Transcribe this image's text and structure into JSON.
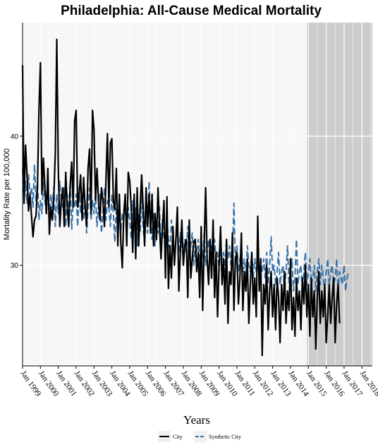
{
  "chart_data": {
    "type": "line",
    "title": "Philadelphia: All-Cause Medical Mortality",
    "xlabel": "Years",
    "ylabel": "Mortality Rate per 100,000",
    "x_range": [
      "1999-01",
      "2018-08"
    ],
    "ylim": [
      22.2,
      48.8
    ],
    "yticks": [
      30,
      40
    ],
    "x_tick_labels": [
      "Jan 1999",
      "Jan 2000",
      "Jan 2001",
      "Jan 2002",
      "Jan 2003",
      "Jan 2004",
      "Jan 2005",
      "Jan 2006",
      "Jan 2007",
      "Jan 2008",
      "Jan 2009",
      "Jan 2010",
      "Jan 2011",
      "Jan 2012",
      "Jan 2013",
      "Jan 2014",
      "Jan 2015",
      "Jan 2016",
      "Jan 2017",
      "Jan 2018"
    ],
    "shaded_period": {
      "start": "2014-12",
      "end": "2018-08",
      "color": "#cccccc"
    },
    "grid": true,
    "legend_position": "bottom",
    "series": [
      {
        "name": "City",
        "color": "#000000",
        "style": "solid",
        "x_start": "1999-01",
        "values": [
          45.5,
          34.8,
          39.3,
          37.0,
          34.2,
          35.5,
          33.8,
          32.2,
          33.5,
          33.8,
          36.0,
          42.0,
          45.7,
          35.5,
          38.3,
          36.0,
          34.0,
          37.5,
          32.4,
          34.5,
          33.5,
          35.3,
          38.7,
          47.5,
          37.5,
          33.0,
          35.0,
          36.0,
          33.0,
          37.2,
          34.5,
          33.0,
          36.2,
          38.0,
          34.5,
          41.2,
          42.0,
          34.5,
          35.5,
          37.0,
          33.5,
          36.8,
          34.5,
          33.0,
          37.5,
          39.0,
          34.0,
          42.0,
          40.5,
          35.0,
          37.5,
          35.0,
          33.5,
          36.0,
          35.0,
          33.0,
          36.5,
          40.2,
          34.5,
          39.5,
          39.8,
          35.0,
          34.3,
          37.5,
          31.5,
          35.5,
          31.8,
          29.8,
          34.0,
          35.5,
          31.5,
          37.2,
          36.5,
          34.5,
          31.0,
          35.5,
          30.5,
          36.0,
          31.5,
          34.5,
          37.0,
          34.5,
          31.5,
          36.0,
          33.0,
          35.5,
          32.5,
          35.5,
          31.5,
          34.0,
          32.0,
          36.0,
          33.0,
          30.5,
          33.0,
          35.0,
          29.0,
          35.3,
          28.2,
          31.5,
          29.0,
          33.0,
          30.0,
          32.0,
          34.5,
          28.0,
          31.0,
          33.5,
          30.0,
          31.5,
          32.0,
          27.5,
          33.5,
          29.0,
          30.5,
          31.8,
          32.0,
          29.5,
          31.0,
          27.5,
          33.0,
          26.5,
          31.5,
          36.0,
          30.5,
          28.5,
          32.0,
          29.0,
          33.5,
          27.5,
          31.0,
          26.0,
          30.0,
          33.0,
          28.5,
          30.5,
          27.0,
          32.0,
          25.5,
          29.5,
          28.5,
          32.5,
          26.5,
          30.5,
          31.0,
          27.0,
          29.0,
          32.5,
          26.5,
          29.5,
          28.0,
          30.5,
          25.5,
          28.5,
          31.0,
          27.0,
          29.0,
          26.0,
          33.8,
          28.0,
          30.5,
          23.0,
          28.5,
          27.0,
          30.0,
          25.0,
          28.0,
          29.5,
          26.0,
          28.5,
          25.0,
          29.0,
          27.5,
          24.0,
          28.5,
          26.5,
          29.5,
          25.5,
          28.0,
          26.5,
          30.5,
          25.0,
          27.5,
          24.5,
          29.0,
          26.5,
          28.0,
          25.0,
          29.0,
          27.0,
          30.0,
          26.0,
          28.5,
          24.5,
          29.0,
          26.0,
          28.0,
          23.5,
          27.5,
          29.5,
          25.5,
          28.0,
          26.0,
          28.5,
          24.0,
          26.0,
          28.5,
          25.5,
          27.5,
          29.0,
          24.0,
          27.0,
          28.5,
          25.5
        ]
      },
      {
        "name": "Synthetic City",
        "color": "#3a73a8",
        "style": "dashed",
        "x_start": "1999-01",
        "values": [
          37.5,
          35.0,
          36.5,
          34.8,
          37.0,
          35.5,
          36.0,
          34.5,
          37.8,
          35.0,
          36.5,
          33.5,
          35.0,
          34.0,
          36.5,
          35.0,
          34.0,
          36.0,
          33.5,
          35.5,
          34.5,
          36.0,
          33.0,
          35.5,
          34.0,
          36.5,
          35.0,
          34.5,
          36.0,
          33.0,
          35.5,
          34.0,
          36.5,
          32.8,
          35.0,
          34.5,
          35.5,
          33.0,
          36.0,
          34.0,
          35.5,
          33.5,
          35.0,
          32.5,
          34.5,
          36.0,
          33.5,
          35.0,
          34.0,
          35.5,
          33.0,
          34.5,
          35.5,
          32.5,
          34.0,
          36.0,
          33.5,
          35.0,
          34.5,
          33.0,
          35.5,
          34.0,
          31.8,
          34.5,
          33.0,
          35.5,
          32.5,
          34.0,
          33.5,
          35.0,
          32.0,
          34.5,
          33.5,
          32.0,
          35.0,
          33.0,
          34.5,
          31.5,
          34.0,
          32.5,
          35.5,
          33.0,
          31.5,
          34.0,
          32.5,
          36.5,
          33.5,
          32.0,
          34.0,
          31.5,
          33.0,
          32.5,
          34.5,
          31.0,
          33.5,
          32.0,
          31.5,
          33.5,
          32.0,
          31.0,
          33.5,
          32.5,
          30.5,
          32.0,
          33.0,
          31.0,
          32.5,
          31.5,
          30.5,
          32.0,
          31.0,
          33.0,
          30.5,
          31.5,
          32.5,
          30.0,
          31.5,
          31.0,
          32.0,
          30.0,
          31.5,
          30.5,
          32.5,
          30.0,
          31.0,
          32.0,
          30.5,
          31.5,
          30.0,
          32.0,
          30.5,
          31.0,
          29.5,
          31.5,
          30.5,
          31.0,
          29.5,
          32.0,
          30.5,
          31.5,
          30.0,
          31.0,
          34.8,
          30.0,
          31.5,
          29.5,
          30.5,
          31.0,
          29.5,
          30.5,
          29.0,
          31.5,
          30.0,
          29.5,
          31.0,
          29.0,
          30.5,
          29.5,
          31.0,
          28.5,
          30.0,
          29.5,
          30.5,
          29.0,
          31.0,
          28.5,
          30.0,
          32.2,
          29.5,
          30.0,
          28.5,
          29.5,
          31.0,
          28.5,
          29.5,
          30.0,
          28.0,
          29.5,
          31.5,
          28.5,
          29.5,
          30.5,
          28.0,
          29.0,
          32.0,
          28.5,
          29.5,
          30.0,
          28.0,
          29.5,
          31.0,
          28.5,
          29.5,
          30.5,
          28.5,
          29.0,
          30.0,
          28.0,
          29.5,
          30.5,
          28.5,
          30.0,
          29.0,
          28.0,
          29.5,
          30.5,
          28.5,
          29.5,
          30.0,
          28.5,
          29.0,
          30.5,
          28.0,
          29.5,
          29.0,
          28.5,
          30.0,
          28.0,
          29.0,
          29.5
        ]
      }
    ]
  }
}
